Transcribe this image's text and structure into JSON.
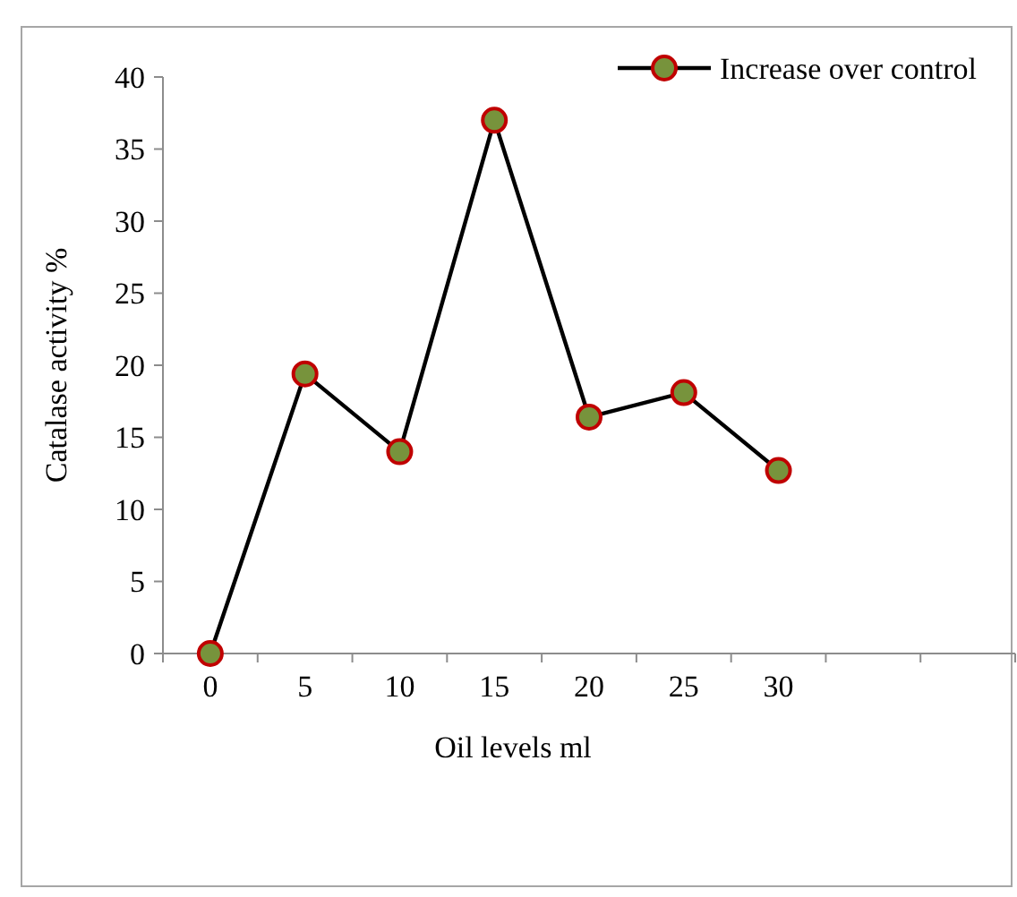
{
  "chart_data": {
    "type": "line",
    "xlabel": "Oil levels ml",
    "ylabel": "Catalase activity %",
    "categories": [
      "0",
      "5",
      "10",
      "15",
      "20",
      "25",
      "30",
      null,
      null
    ],
    "series": [
      {
        "name": "Increase over control",
        "color": "#000000",
        "values": [
          0,
          19.4,
          14.0,
          37.0,
          16.4,
          18.1,
          12.7,
          null,
          null
        ]
      }
    ],
    "ylim": [
      0,
      40
    ],
    "yticks": [
      0,
      5,
      10,
      15,
      20,
      25,
      30,
      35,
      40
    ],
    "grid": false,
    "legend": "top right",
    "marker": "circle",
    "line_style": "solid"
  }
}
